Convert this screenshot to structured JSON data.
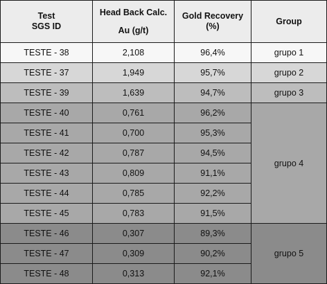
{
  "headers": {
    "test": [
      "Test",
      "SGS ID"
    ],
    "head_back": [
      "Head Back Calc.",
      "Au (g/t)"
    ],
    "recovery": [
      "Gold Recovery",
      "(%)"
    ],
    "group": "Group"
  },
  "rows": [
    {
      "id": "TESTE - 38",
      "au": "2,108",
      "rec": "96,4%"
    },
    {
      "id": "TESTE - 37",
      "au": "1,949",
      "rec": "95,7%"
    },
    {
      "id": "TESTE - 39",
      "au": "1,639",
      "rec": "94,7%"
    },
    {
      "id": "TESTE - 40",
      "au": "0,761",
      "rec": "96,2%"
    },
    {
      "id": "TESTE - 41",
      "au": "0,700",
      "rec": "95,3%"
    },
    {
      "id": "TESTE - 42",
      "au": "0,787",
      "rec": "94,5%"
    },
    {
      "id": "TESTE - 43",
      "au": "0,809",
      "rec": "91,1%"
    },
    {
      "id": "TESTE - 44",
      "au": "0,785",
      "rec": "92,2%"
    },
    {
      "id": "TESTE - 45",
      "au": "0,783",
      "rec": "91,5%"
    },
    {
      "id": "TESTE - 46",
      "au": "0,307",
      "rec": "89,3%"
    },
    {
      "id": "TESTE - 47",
      "au": "0,309",
      "rec": "90,2%"
    },
    {
      "id": "TESTE - 48",
      "au": "0,313",
      "rec": "92,1%"
    }
  ],
  "groups": [
    "grupo 1",
    "grupo 2",
    "grupo 3",
    "grupo 4",
    "grupo 5"
  ],
  "colors": {
    "header": "#ececec",
    "grupo_1": "#f7f7f7",
    "grupo_2": "#d7d7d7",
    "grupo_3": "#bdbdbd",
    "grupo_4": "#a8a8a8",
    "grupo_5": "#8b8b8b",
    "border": "#1a1a1a"
  }
}
